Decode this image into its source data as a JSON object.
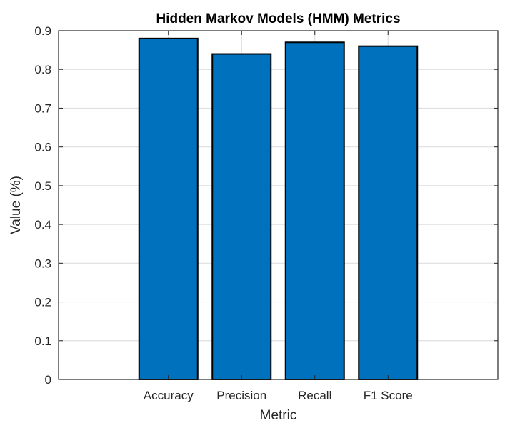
{
  "chart_data": {
    "type": "bar",
    "title": "Hidden Markov Models (HMM) Metrics",
    "xlabel": "Metric",
    "ylabel": "Value (%)",
    "categories": [
      "Accuracy",
      "Precision",
      "Recall",
      "F1 Score"
    ],
    "values": [
      0.88,
      0.84,
      0.87,
      0.86
    ],
    "ylim": [
      0,
      0.9
    ],
    "yticks": [
      "0",
      "0.1",
      "0.2",
      "0.3",
      "0.4",
      "0.5",
      "0.6",
      "0.7",
      "0.8",
      "0.9"
    ],
    "grid": true,
    "bar_color": "#0072BD",
    "bar_edge_color": "#000000"
  }
}
